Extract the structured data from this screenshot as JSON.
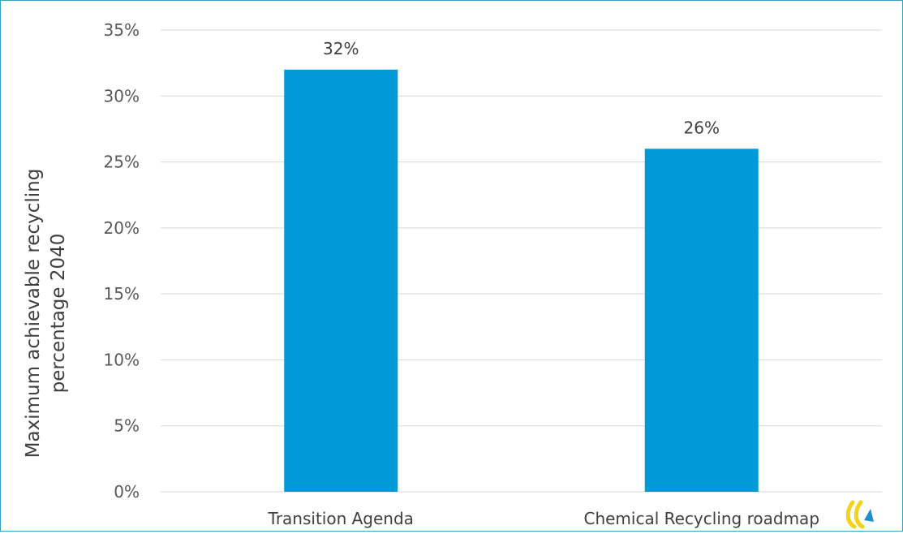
{
  "chart_data": {
    "type": "bar",
    "categories": [
      "Transition Agenda",
      "Chemical Recycling roadmap"
    ],
    "values": [
      32,
      26
    ],
    "data_labels": [
      "32%",
      "26%"
    ],
    "ylabel_lines": [
      "Maximum achievable recycling",
      "percentage 2040"
    ],
    "ylim": [
      0,
      35
    ],
    "yticks": [
      0,
      5,
      10,
      15,
      20,
      25,
      30,
      35
    ],
    "ytick_labels": [
      "0%",
      "5%",
      "10%",
      "15%",
      "20%",
      "25%",
      "30%",
      "35%"
    ],
    "grid": true,
    "bar_color": "#009ad8",
    "grid_color": "#d9d9d9",
    "frame_color": "#3aa0c8"
  },
  "logo": {
    "name": "logo-icon",
    "colors": [
      "#f2d21b",
      "#1f8fc8"
    ]
  }
}
